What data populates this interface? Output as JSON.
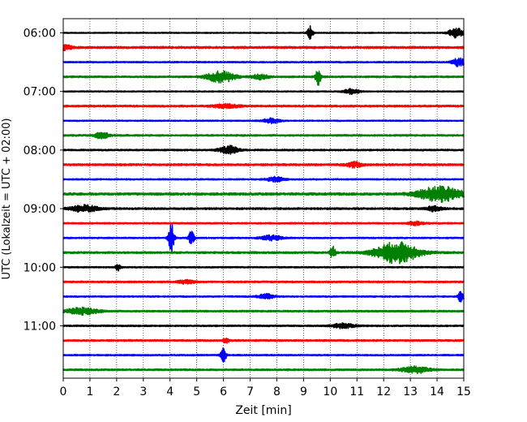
{
  "chart_data": {
    "type": "line",
    "title": "",
    "xlabel": "Zeit  [min]",
    "ylabel": "UTC (Lokalzeit = UTC + 02:00)",
    "xlim": [
      0,
      15
    ],
    "x_ticks": [
      "0",
      "1",
      "2",
      "3",
      "4",
      "5",
      "6",
      "7",
      "8",
      "9",
      "10",
      "11",
      "12",
      "13",
      "14",
      "15"
    ],
    "y_tick_labels": [
      "06:00",
      "07:00",
      "08:00",
      "09:00",
      "10:00",
      "11:00"
    ],
    "y_tick_rows": [
      0,
      4,
      8,
      12,
      16,
      20
    ],
    "grid": "vertical dotted",
    "line_colors": [
      "#000000",
      "#ff0000",
      "#0000ff",
      "#008000"
    ],
    "rows": [
      {
        "start": "06:00",
        "color": "#000000",
        "noise": 0.6,
        "events": [
          {
            "t": 9.25,
            "amp": 8,
            "dur": 0.1
          },
          {
            "t": 14.7,
            "amp": 7,
            "dur": 0.25
          }
        ]
      },
      {
        "start": "06:15",
        "color": "#ff0000",
        "noise": 1.3,
        "events": [
          {
            "t": 0.1,
            "amp": 3,
            "dur": 0.2
          }
        ]
      },
      {
        "start": "06:30",
        "color": "#0000ff",
        "noise": 0.8,
        "events": [
          {
            "t": 14.8,
            "amp": 5,
            "dur": 0.25
          }
        ]
      },
      {
        "start": "06:45",
        "color": "#008000",
        "noise": 1.0,
        "events": [
          {
            "t": 5.9,
            "amp": 7,
            "dur": 0.5
          },
          {
            "t": 7.4,
            "amp": 3,
            "dur": 0.3
          },
          {
            "t": 9.55,
            "amp": 10,
            "dur": 0.1
          }
        ]
      },
      {
        "start": "07:00",
        "color": "#000000",
        "noise": 0.7,
        "events": [
          {
            "t": 10.8,
            "amp": 3,
            "dur": 0.3
          }
        ]
      },
      {
        "start": "07:15",
        "color": "#ff0000",
        "noise": 1.1,
        "events": [
          {
            "t": 6.1,
            "amp": 2,
            "dur": 0.5
          }
        ]
      },
      {
        "start": "07:30",
        "color": "#0000ff",
        "noise": 0.7,
        "events": [
          {
            "t": 7.8,
            "amp": 3,
            "dur": 0.3
          }
        ]
      },
      {
        "start": "07:45",
        "color": "#008000",
        "noise": 1.0,
        "events": [
          {
            "t": 1.45,
            "amp": 4,
            "dur": 0.25
          }
        ]
      },
      {
        "start": "08:00",
        "color": "#000000",
        "noise": 0.9,
        "events": [
          {
            "t": 6.2,
            "amp": 5,
            "dur": 0.35
          }
        ]
      },
      {
        "start": "08:15",
        "color": "#ff0000",
        "noise": 1.2,
        "events": [
          {
            "t": 10.9,
            "amp": 3,
            "dur": 0.3
          }
        ]
      },
      {
        "start": "08:30",
        "color": "#0000ff",
        "noise": 0.8,
        "events": [
          {
            "t": 7.95,
            "amp": 3,
            "dur": 0.3
          }
        ]
      },
      {
        "start": "08:45",
        "color": "#008000",
        "noise": 1.4,
        "events": [
          {
            "t": 14.1,
            "amp": 9,
            "dur": 0.8
          }
        ]
      },
      {
        "start": "09:00",
        "color": "#000000",
        "noise": 1.1,
        "events": [
          {
            "t": 0.8,
            "amp": 4,
            "dur": 0.5
          },
          {
            "t": 13.9,
            "amp": 3,
            "dur": 0.3
          }
        ]
      },
      {
        "start": "09:15",
        "color": "#ff0000",
        "noise": 0.9,
        "events": [
          {
            "t": 13.2,
            "amp": 2,
            "dur": 0.3
          }
        ]
      },
      {
        "start": "09:30",
        "color": "#0000ff",
        "noise": 0.8,
        "events": [
          {
            "t": 4.05,
            "amp": 20,
            "dur": 0.1
          },
          {
            "t": 4.8,
            "amp": 9,
            "dur": 0.1
          },
          {
            "t": 7.8,
            "amp": 3,
            "dur": 0.4
          }
        ]
      },
      {
        "start": "09:45",
        "color": "#008000",
        "noise": 1.1,
        "events": [
          {
            "t": 10.1,
            "amp": 8,
            "dur": 0.1
          },
          {
            "t": 12.5,
            "amp": 13,
            "dur": 0.8
          }
        ]
      },
      {
        "start": "10:00",
        "color": "#000000",
        "noise": 0.8,
        "events": [
          {
            "t": 2.05,
            "amp": 4,
            "dur": 0.1
          }
        ]
      },
      {
        "start": "10:15",
        "color": "#ff0000",
        "noise": 1.0,
        "events": [
          {
            "t": 4.6,
            "amp": 2,
            "dur": 0.3
          }
        ]
      },
      {
        "start": "10:30",
        "color": "#0000ff",
        "noise": 0.8,
        "events": [
          {
            "t": 7.6,
            "amp": 3,
            "dur": 0.3
          },
          {
            "t": 14.9,
            "amp": 8,
            "dur": 0.1
          }
        ]
      },
      {
        "start": "10:45",
        "color": "#008000",
        "noise": 1.0,
        "events": [
          {
            "t": 0.7,
            "amp": 4,
            "dur": 0.6
          }
        ]
      },
      {
        "start": "11:00",
        "color": "#000000",
        "noise": 0.9,
        "events": [
          {
            "t": 10.5,
            "amp": 3,
            "dur": 0.4
          }
        ]
      },
      {
        "start": "11:15",
        "color": "#ff0000",
        "noise": 1.0,
        "events": [
          {
            "t": 6.1,
            "amp": 3,
            "dur": 0.1
          }
        ]
      },
      {
        "start": "11:30",
        "color": "#0000ff",
        "noise": 0.8,
        "events": [
          {
            "t": 6.0,
            "amp": 9,
            "dur": 0.1
          }
        ]
      },
      {
        "start": "11:45",
        "color": "#008000",
        "noise": 1.0,
        "events": [
          {
            "t": 13.2,
            "amp": 4,
            "dur": 0.5
          }
        ]
      }
    ]
  }
}
